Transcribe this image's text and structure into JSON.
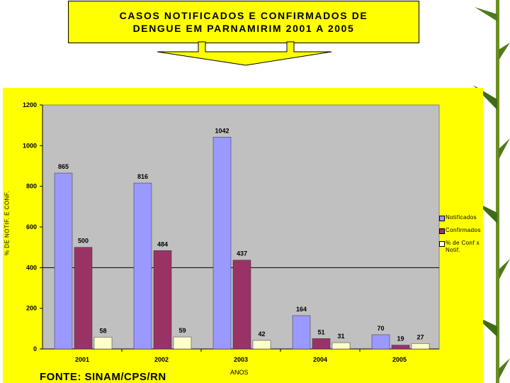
{
  "title": {
    "line1": "CASOS NOTIFICADOS E CONFIRMADOS DE",
    "line2": "DENGUE EM PARNAMIRIM 2001 A 2005"
  },
  "colors": {
    "panel": "#ffff00",
    "plot_bg": "#c0c0c0",
    "notificados": "#9999ff",
    "confirmados": "#993366",
    "pct": "#ffffcc"
  },
  "source": "FONTE: SINAM/CPS/RN",
  "chart_data": {
    "type": "bar",
    "categories": [
      "2001",
      "2002",
      "2003",
      "2004",
      "2005"
    ],
    "series": [
      {
        "name": "Notificados",
        "values": [
          865,
          816,
          1042,
          164,
          70
        ]
      },
      {
        "name": "Confirmados",
        "values": [
          500,
          484,
          437,
          51,
          19
        ]
      },
      {
        "name": "% de Conf x Notif.",
        "values": [
          58,
          59,
          42,
          31,
          27
        ]
      }
    ],
    "xlabel": "ANOS",
    "ylabel": "% DE NOTIF. E CONF.",
    "ylim": [
      0,
      1200
    ],
    "yticks": [
      "0",
      "200",
      "400",
      "600",
      "800",
      "1000",
      "1200"
    ],
    "reference_line": 400,
    "legend_position": "right"
  }
}
